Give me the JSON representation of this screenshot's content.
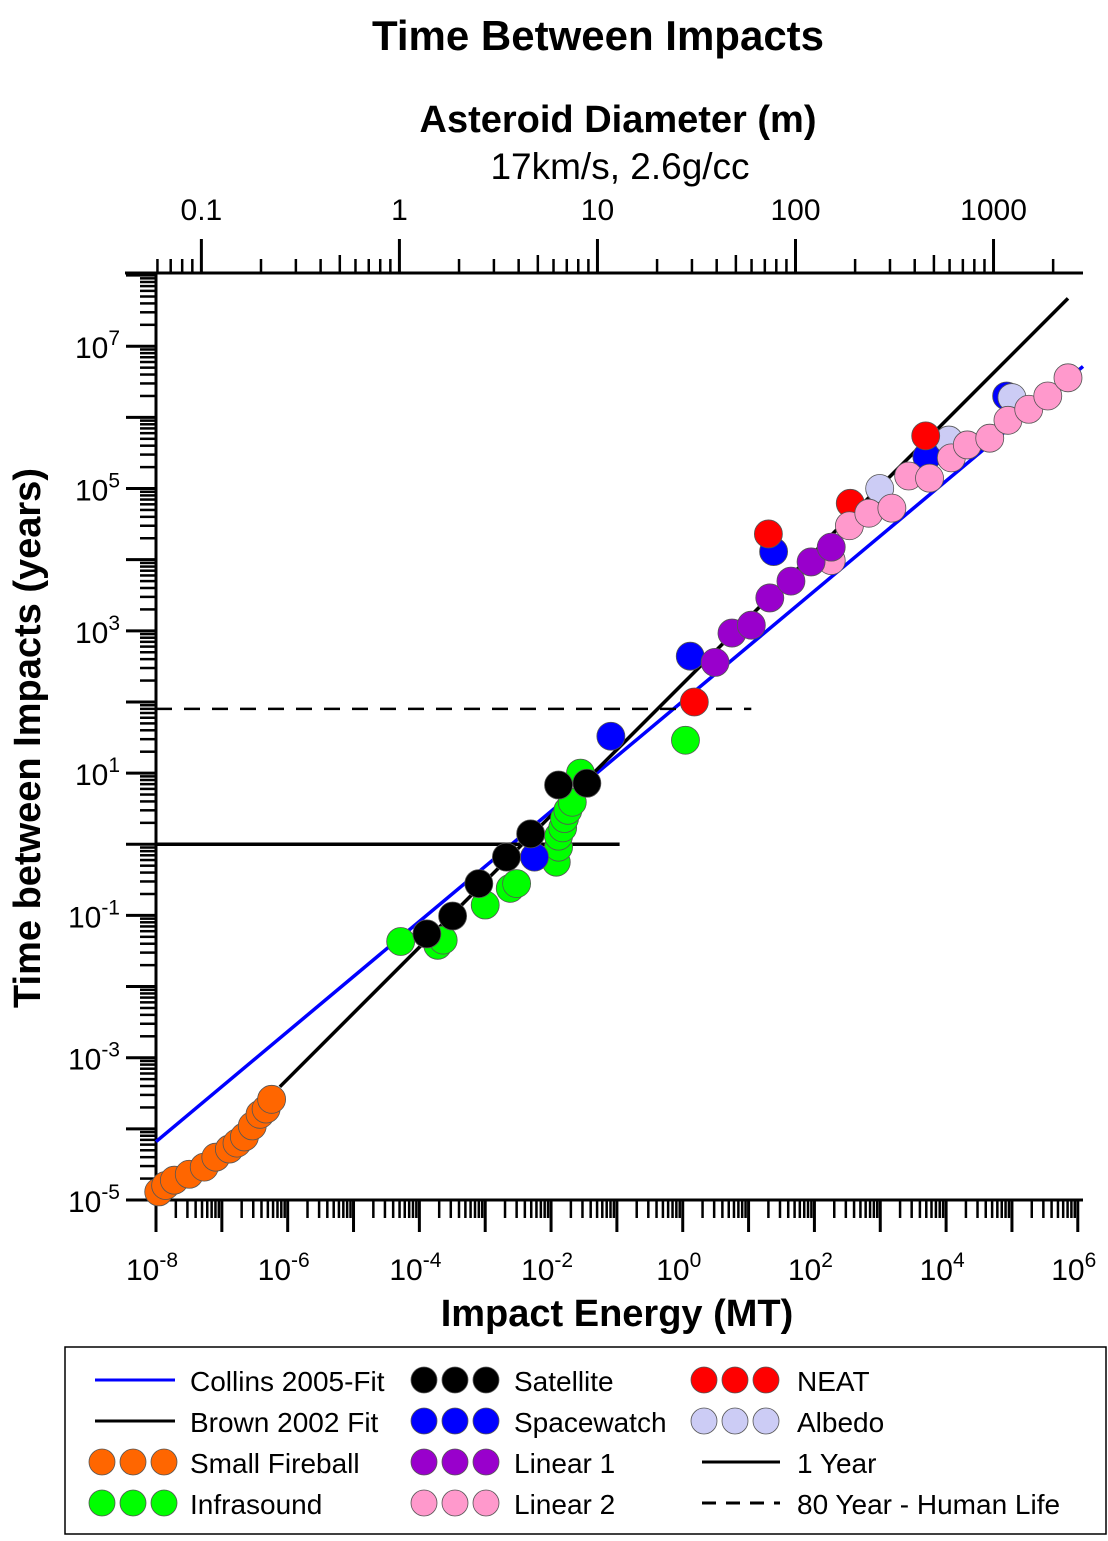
{
  "chart_data": {
    "type": "scatter",
    "title": "Time Between Impacts",
    "top_axis": {
      "label": "Asteroid Diameter (m)",
      "sublabel": "17km/s, 2.6g/cc",
      "scale": "log",
      "tick_labels": [
        "0.1",
        "1",
        "10",
        "100",
        "1000"
      ],
      "tick_values": [
        0.1,
        1,
        10,
        100,
        1000
      ],
      "range": [
        0.059,
        2830
      ]
    },
    "xlabel": "Impact Energy (MT)",
    "ylabel": "Time between Impacts (years)",
    "x_scale": "log",
    "y_scale": "log",
    "xlim": [
      1e-08,
      1200000.0
    ],
    "ylim": [
      1e-05,
      107000000.0
    ],
    "x_tick_labels": [
      {
        "base": "10",
        "exp": "-8",
        "value": 1e-08
      },
      {
        "base": "10",
        "exp": "-6",
        "value": 1e-06
      },
      {
        "base": "10",
        "exp": "-4",
        "value": 0.0001
      },
      {
        "base": "10",
        "exp": "-2",
        "value": 0.01
      },
      {
        "base": "10",
        "exp": "0",
        "value": 1
      },
      {
        "base": "10",
        "exp": "2",
        "value": 100.0
      },
      {
        "base": "10",
        "exp": "4",
        "value": 10000.0
      },
      {
        "base": "10",
        "exp": "6",
        "value": 1000000.0
      }
    ],
    "y_tick_labels": [
      {
        "base": "10",
        "exp": "-5",
        "value": 1e-05
      },
      {
        "base": "10",
        "exp": "-3",
        "value": 0.001
      },
      {
        "base": "10",
        "exp": "-1",
        "value": 0.1
      },
      {
        "base": "10",
        "exp": "1",
        "value": 10
      },
      {
        "base": "10",
        "exp": "3",
        "value": 1000.0
      },
      {
        "base": "10",
        "exp": "5",
        "value": 100000.0
      },
      {
        "base": "10",
        "exp": "7",
        "value": 10000000.0
      }
    ],
    "grid": false,
    "legend_placement": "bottom",
    "lines": [
      {
        "name": "Collins 2005-Fit",
        "color": "#0000ff",
        "style": "solid",
        "x": [
          1e-08,
          1200000.0
        ],
        "y": [
          6.6e-05,
          5200000.0
        ]
      },
      {
        "name": "Brown 2002 Fit",
        "color": "#000000",
        "style": "solid",
        "x": [
          7.6e-07,
          710000.0
        ],
        "y": [
          0.00039,
          47000000.0
        ]
      },
      {
        "name": "1 Year",
        "color": "#000000",
        "style": "solid",
        "x": [
          1e-08,
          0.11
        ],
        "y": [
          1,
          1
        ]
      },
      {
        "name": "80 Year - Human Life",
        "color": "#000000",
        "style": "dashed",
        "x": [
          1e-08,
          11
        ],
        "y": [
          80,
          80
        ]
      }
    ],
    "series": [
      {
        "name": "Small Fireball",
        "color": "#ff6600",
        "x": [
          1.1e-08,
          1.4e-08,
          1.9e-08,
          3.2e-08,
          5.4e-08,
          8.1e-08,
          1.3e-07,
          1.7e-07,
          2.2e-07,
          2.9e-07,
          3.8e-07,
          4.7e-07,
          5.7e-07
        ],
        "y": [
          1.3e-05,
          1.6e-05,
          1.9e-05,
          2.3e-05,
          2.9e-05,
          4e-05,
          5.2e-05,
          6.3e-05,
          7.7e-05,
          0.00011,
          0.00016,
          0.00019,
          0.00026
        ]
      },
      {
        "name": "Infrasound",
        "color": "#00ff00",
        "x": [
          5.2e-05,
          0.00019,
          0.00023,
          0.001,
          0.0024,
          0.003,
          0.012,
          0.013,
          0.013,
          0.015,
          0.016,
          0.018,
          0.021,
          0.028,
          1.1
        ],
        "y": [
          0.043,
          0.038,
          0.045,
          0.14,
          0.24,
          0.28,
          0.56,
          0.91,
          1.3,
          1.7,
          2.3,
          3.0,
          3.9,
          10,
          29
        ]
      },
      {
        "name": "Spacewatch",
        "color": "#0000ff",
        "x": [
          0.0056,
          0.081,
          1.3,
          24,
          5100.0,
          83000.0
        ],
        "y": [
          0.66,
          33,
          440,
          13000.0,
          280000.0,
          2000000.0
        ]
      },
      {
        "name": "Satellite",
        "color": "#000000",
        "x": [
          0.00013,
          0.00032,
          0.0008,
          0.0021,
          0.0049,
          0.013,
          0.035
        ],
        "y": [
          0.055,
          0.098,
          0.28,
          0.66,
          1.4,
          6.8,
          7.2
        ]
      },
      {
        "name": "Albedo",
        "color": "#ccccf5",
        "x": [
          980,
          11000.0,
          100000.0
        ],
        "y": [
          100000.0,
          480000.0,
          1900000.0
        ]
      },
      {
        "name": "NEAT",
        "color": "#ff0000",
        "x": [
          1.5,
          20,
          350,
          4900.0
        ],
        "y": [
          100,
          23000.0,
          62000.0,
          550000.0
        ]
      },
      {
        "name": "Linear 2",
        "color": "#ff99cc",
        "x": [
          180,
          340,
          670,
          1500,
          2700,
          5600.0,
          12000.0,
          21000.0,
          46000.0,
          87000.0,
          180000.0,
          350000.0,
          710000.0
        ],
        "y": [
          9700.0,
          30000.0,
          45000.0,
          53000.0,
          150000.0,
          140000.0,
          270000.0,
          410000.0,
          510000.0,
          910000.0,
          1300000.0,
          2000000.0,
          3600000.0
        ]
      },
      {
        "name": "Linear 1",
        "color": "#9900cc",
        "x": [
          3.1,
          5.6,
          11,
          21,
          44,
          89,
          180
        ],
        "y": [
          360,
          930,
          1200,
          2900,
          5000,
          9300,
          15000.0
        ]
      }
    ]
  },
  "legend": [
    {
      "label": "Collins 2005-Fit",
      "kind": "line",
      "color": "#0000ff",
      "style": "solid"
    },
    {
      "label": "Brown 2002 Fit",
      "kind": "line",
      "color": "#000000",
      "style": "solid"
    },
    {
      "label": "Small Fireball",
      "kind": "marker",
      "color": "#ff6600"
    },
    {
      "label": "Infrasound",
      "kind": "marker",
      "color": "#00ff00"
    },
    {
      "label": "Satellite",
      "kind": "marker",
      "color": "#000000"
    },
    {
      "label": "Spacewatch",
      "kind": "marker",
      "color": "#0000ff"
    },
    {
      "label": "Linear 1",
      "kind": "marker",
      "color": "#9900cc"
    },
    {
      "label": "Linear 2",
      "kind": "marker",
      "color": "#ff99cc"
    },
    {
      "label": "NEAT",
      "kind": "marker",
      "color": "#ff0000"
    },
    {
      "label": "Albedo",
      "kind": "marker",
      "color": "#ccccf5"
    },
    {
      "label": "1 Year",
      "kind": "line",
      "color": "#000000",
      "style": "solid"
    },
    {
      "label": "80 Year - Human Life",
      "kind": "line",
      "color": "#000000",
      "style": "dashed"
    }
  ]
}
